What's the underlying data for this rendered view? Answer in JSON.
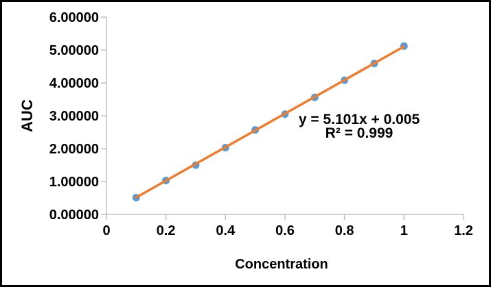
{
  "chart_data": {
    "type": "scatter",
    "title": "",
    "xlabel": "Concentration",
    "ylabel": "AUC",
    "xlim": [
      0,
      1.2
    ],
    "ylim": [
      0,
      6
    ],
    "grid": false,
    "legend": "none",
    "x": [
      0.1,
      0.2,
      0.3,
      0.4,
      0.5,
      0.6,
      0.7,
      0.8,
      0.9,
      1.0
    ],
    "series": [
      {
        "name": "AUC",
        "values": [
          0.51,
          1.03,
          1.5,
          2.03,
          2.57,
          3.05,
          3.56,
          4.08,
          4.59,
          5.12
        ]
      }
    ],
    "trendline": {
      "type": "linear",
      "slope": 5.101,
      "intercept": 0.005,
      "x_start": 0.1,
      "x_end": 1.0
    },
    "annotations": {
      "equation": "y = 5.101x + 0.005",
      "r_squared": "R² = 0.999"
    },
    "xticks": [
      {
        "value": 0,
        "label": "0"
      },
      {
        "value": 0.2,
        "label": "0.2"
      },
      {
        "value": 0.4,
        "label": "0.4"
      },
      {
        "value": 0.6,
        "label": "0.6"
      },
      {
        "value": 0.8,
        "label": "0.8"
      },
      {
        "value": 1,
        "label": "1"
      },
      {
        "value": 1.2,
        "label": "1.2"
      }
    ],
    "yticks": [
      {
        "value": 0,
        "label": "0.00000"
      },
      {
        "value": 1,
        "label": "1.00000"
      },
      {
        "value": 2,
        "label": "2.00000"
      },
      {
        "value": 3,
        "label": "3.00000"
      },
      {
        "value": 4,
        "label": "4.00000"
      },
      {
        "value": 5,
        "label": "5.00000"
      },
      {
        "value": 6,
        "label": "6.00000"
      }
    ],
    "colors": {
      "marker": "#5B9BD5",
      "trendline": "#ED7D31",
      "axis": "#C0C0C0",
      "text": "#000000",
      "frame": "#000000",
      "background": "#FFFFFF"
    }
  }
}
